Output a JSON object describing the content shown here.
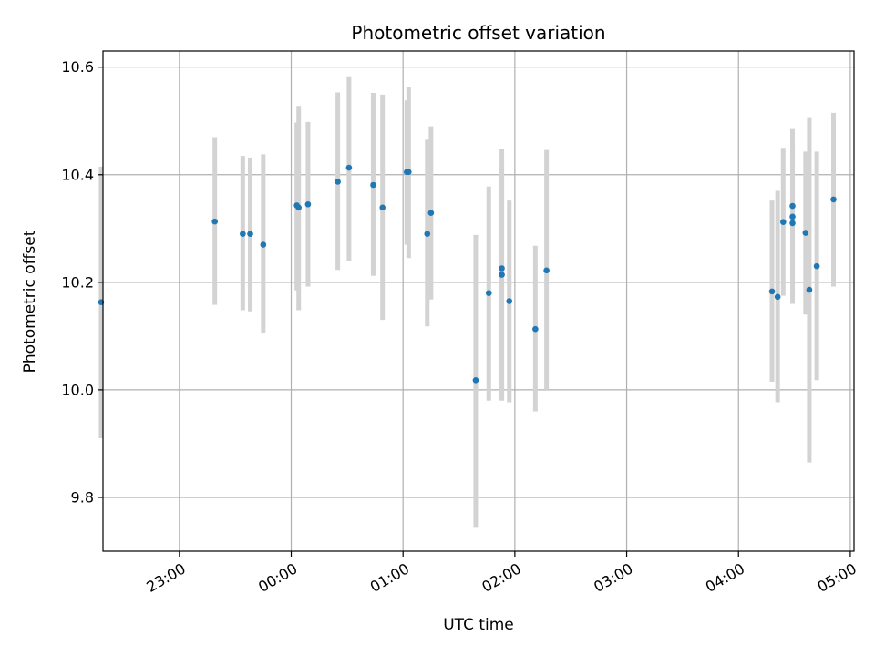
{
  "chart_data": {
    "type": "scatter",
    "title": "Photometric offset variation",
    "xlabel": "UTC time",
    "ylabel": "Photometric offset",
    "grid": true,
    "x_axis_type": "time",
    "x_reference_day": "UTC night",
    "xlim": [
      "22:19",
      "05:02"
    ],
    "ylim": [
      9.7,
      10.63
    ],
    "x_ticks": [
      "23:00",
      "00:00",
      "01:00",
      "02:00",
      "03:00",
      "04:00",
      "05:00"
    ],
    "y_ticks": [
      9.8,
      10.0,
      10.2,
      10.4,
      10.6
    ],
    "y_tick_labels": [
      "9.8",
      "10.0",
      "10.2",
      "10.4",
      "10.6"
    ],
    "colors": {
      "point": "#1f77b4",
      "errorbar": "#d3d3d3",
      "grid": "#b0b0b0"
    },
    "series": [
      {
        "marker": "point",
        "error_bar": "vertical",
        "points": [
          {
            "x": "22:18",
            "y": 10.163,
            "y_low": 9.91,
            "y_high": 10.415
          },
          {
            "x": "23:19",
            "y": 10.313,
            "y_low": 10.158,
            "y_high": 10.47
          },
          {
            "x": "23:34",
            "y": 10.29,
            "y_low": 10.148,
            "y_high": 10.435
          },
          {
            "x": "23:38",
            "y": 10.29,
            "y_low": 10.146,
            "y_high": 10.432
          },
          {
            "x": "23:45",
            "y": 10.27,
            "y_low": 10.105,
            "y_high": 10.438
          },
          {
            "x": "00:03",
            "y": 10.343,
            "y_low": 10.185,
            "y_high": 10.497
          },
          {
            "x": "00:04",
            "y": 10.339,
            "y_low": 10.148,
            "y_high": 10.528
          },
          {
            "x": "00:09",
            "y": 10.345,
            "y_low": 10.192,
            "y_high": 10.498
          },
          {
            "x": "00:25",
            "y": 10.387,
            "y_low": 10.223,
            "y_high": 10.553
          },
          {
            "x": "00:31",
            "y": 10.413,
            "y_low": 10.24,
            "y_high": 10.583
          },
          {
            "x": "00:44",
            "y": 10.381,
            "y_low": 10.212,
            "y_high": 10.552
          },
          {
            "x": "00:49",
            "y": 10.339,
            "y_low": 10.13,
            "y_high": 10.549
          },
          {
            "x": "01:02",
            "y": 10.405,
            "y_low": 10.27,
            "y_high": 10.538
          },
          {
            "x": "01:03",
            "y": 10.405,
            "y_low": 10.245,
            "y_high": 10.563
          },
          {
            "x": "01:13",
            "y": 10.29,
            "y_low": 10.118,
            "y_high": 10.465
          },
          {
            "x": "01:15",
            "y": 10.329,
            "y_low": 10.168,
            "y_high": 10.49
          },
          {
            "x": "01:39",
            "y": 10.018,
            "y_low": 9.745,
            "y_high": 10.288
          },
          {
            "x": "01:46",
            "y": 10.18,
            "y_low": 9.98,
            "y_high": 10.378
          },
          {
            "x": "01:53",
            "y": 10.226,
            "y_low": 9.98,
            "y_high": 10.447
          },
          {
            "x": "01:53",
            "y": 10.214,
            "y_low": 9.983,
            "y_high": 10.42
          },
          {
            "x": "01:57",
            "y": 10.165,
            "y_low": 9.977,
            "y_high": 10.352
          },
          {
            "x": "02:11",
            "y": 10.113,
            "y_low": 9.96,
            "y_high": 10.268
          },
          {
            "x": "02:17",
            "y": 10.222,
            "y_low": 10.0,
            "y_high": 10.446
          },
          {
            "x": "04:18",
            "y": 10.183,
            "y_low": 10.015,
            "y_high": 10.352
          },
          {
            "x": "04:21",
            "y": 10.173,
            "y_low": 9.977,
            "y_high": 10.37
          },
          {
            "x": "04:24",
            "y": 10.312,
            "y_low": 10.175,
            "y_high": 10.45
          },
          {
            "x": "04:29",
            "y": 10.342,
            "y_low": 10.2,
            "y_high": 10.485
          },
          {
            "x": "04:29",
            "y": 10.322,
            "y_low": 10.175,
            "y_high": 10.46
          },
          {
            "x": "04:29",
            "y": 10.31,
            "y_low": 10.16,
            "y_high": 10.455
          },
          {
            "x": "04:36",
            "y": 10.292,
            "y_low": 10.14,
            "y_high": 10.443
          },
          {
            "x": "04:38",
            "y": 10.186,
            "y_low": 9.865,
            "y_high": 10.507
          },
          {
            "x": "04:42",
            "y": 10.23,
            "y_low": 10.018,
            "y_high": 10.443
          },
          {
            "x": "04:51",
            "y": 10.354,
            "y_low": 10.192,
            "y_high": 10.515
          }
        ]
      }
    ]
  }
}
